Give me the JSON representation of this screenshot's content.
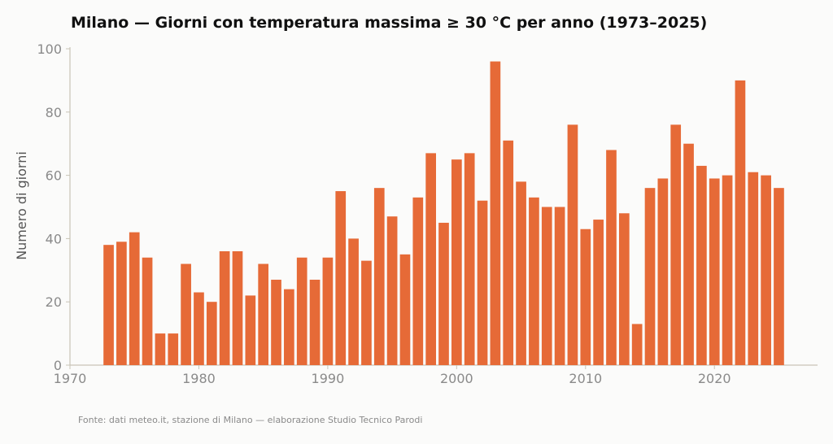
{
  "chart_data": {
    "type": "bar",
    "title": "Milano — Giorni con temperatura massima ≥ 30 °C per anno (1973–2025)",
    "xlabel": "",
    "ylabel": "Numero di giorni",
    "xlim": [
      1970,
      2028
    ],
    "ylim": [
      0,
      100
    ],
    "x_ticks": [
      1970,
      1980,
      1990,
      2000,
      2010,
      2020
    ],
    "y_ticks": [
      0,
      20,
      40,
      60,
      80,
      100
    ],
    "grid": false,
    "bar_color": "#e66a37",
    "x": [
      1973,
      1974,
      1975,
      1976,
      1977,
      1978,
      1979,
      1980,
      1981,
      1982,
      1983,
      1984,
      1985,
      1986,
      1987,
      1988,
      1989,
      1990,
      1991,
      1992,
      1993,
      1994,
      1995,
      1996,
      1997,
      1998,
      1999,
      2000,
      2001,
      2002,
      2003,
      2004,
      2005,
      2006,
      2007,
      2008,
      2009,
      2010,
      2011,
      2012,
      2013,
      2014,
      2015,
      2016,
      2017,
      2018,
      2019,
      2020,
      2021,
      2022,
      2023,
      2024,
      2025
    ],
    "values": [
      38,
      39,
      42,
      34,
      10,
      10,
      32,
      23,
      20,
      36,
      36,
      22,
      32,
      27,
      24,
      34,
      27,
      34,
      55,
      40,
      33,
      56,
      47,
      35,
      53,
      67,
      45,
      65,
      67,
      52,
      96,
      71,
      58,
      53,
      50,
      50,
      76,
      43,
      46,
      68,
      48,
      13,
      56,
      59,
      76,
      70,
      63,
      59,
      60,
      90,
      61,
      60,
      56
    ]
  },
  "source_note": "Fonte: dati meteo.it, stazione di Milano — elaborazione Studio Tecnico Parodi"
}
